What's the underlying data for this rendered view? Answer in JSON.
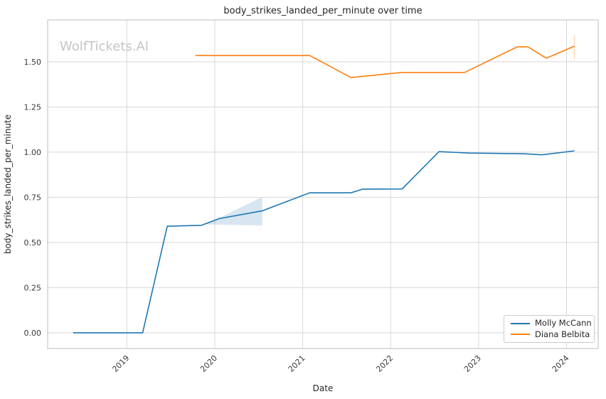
{
  "watermark": "WolfTickets.AI",
  "chart_data": {
    "type": "line",
    "title": "body_strikes_landed_per_minute over time",
    "xlabel": "Date",
    "ylabel": "body_strikes_landed_per_minute",
    "x_ticks": [
      2019,
      2020,
      2021,
      2022,
      2023,
      2024
    ],
    "x_tick_labels": [
      "2019",
      "2020",
      "2021",
      "2022",
      "2023",
      "2024"
    ],
    "x_tick_rotation": 45,
    "y_ticks": [
      0.0,
      0.25,
      0.5,
      0.75,
      1.0,
      1.25,
      1.5
    ],
    "y_tick_labels": [
      "0.00",
      "0.25",
      "0.50",
      "0.75",
      "1.00",
      "1.25",
      "1.50"
    ],
    "xlim": [
      2018.1,
      2024.36
    ],
    "ylim": [
      -0.087,
      1.732
    ],
    "grid": true,
    "legend_position": "lower right",
    "series": [
      {
        "name": "Molly McCann",
        "color": "#1f77b4",
        "x": [
          2018.39,
          2019.18,
          2019.46,
          2019.85,
          2020.05,
          2020.54,
          2021.08,
          2021.55,
          2021.68,
          2022.13,
          2022.55,
          2022.9,
          2023.52,
          2023.72,
          2024.09
        ],
        "y": [
          0.0,
          0.0,
          0.59,
          0.595,
          0.632,
          0.675,
          0.775,
          0.775,
          0.795,
          0.796,
          1.003,
          0.995,
          0.991,
          0.985,
          1.007
        ]
      },
      {
        "name": "Diana Belbita",
        "color": "#ff7f0e",
        "x": [
          2019.78,
          2021.08,
          2021.55,
          2022.12,
          2022.84,
          2023.44,
          2023.56,
          2023.77,
          2024.09
        ],
        "y": [
          1.535,
          1.535,
          1.413,
          1.441,
          1.441,
          1.583,
          1.583,
          1.52,
          1.587
        ]
      }
    ],
    "confidence_band": {
      "series": "Molly McCann",
      "color": "#1f77b4",
      "opacity": 0.18,
      "polygon": {
        "x": [
          2019.9,
          2020.54,
          2020.54
        ],
        "y": [
          0.6,
          0.752,
          0.594
        ]
      }
    },
    "error_bar": {
      "series": "Diana Belbita",
      "color": "#ff7f0e",
      "opacity": 0.3,
      "x": 2024.09,
      "y_low": 1.516,
      "y_high": 1.646
    },
    "colors": {
      "background": "#ffffff",
      "grid": "#d8d8d8",
      "frame": "#c9c9c9",
      "tick_text": "#3a3a3a",
      "label_text": "#262626",
      "watermark": "#c5c5c5"
    }
  }
}
